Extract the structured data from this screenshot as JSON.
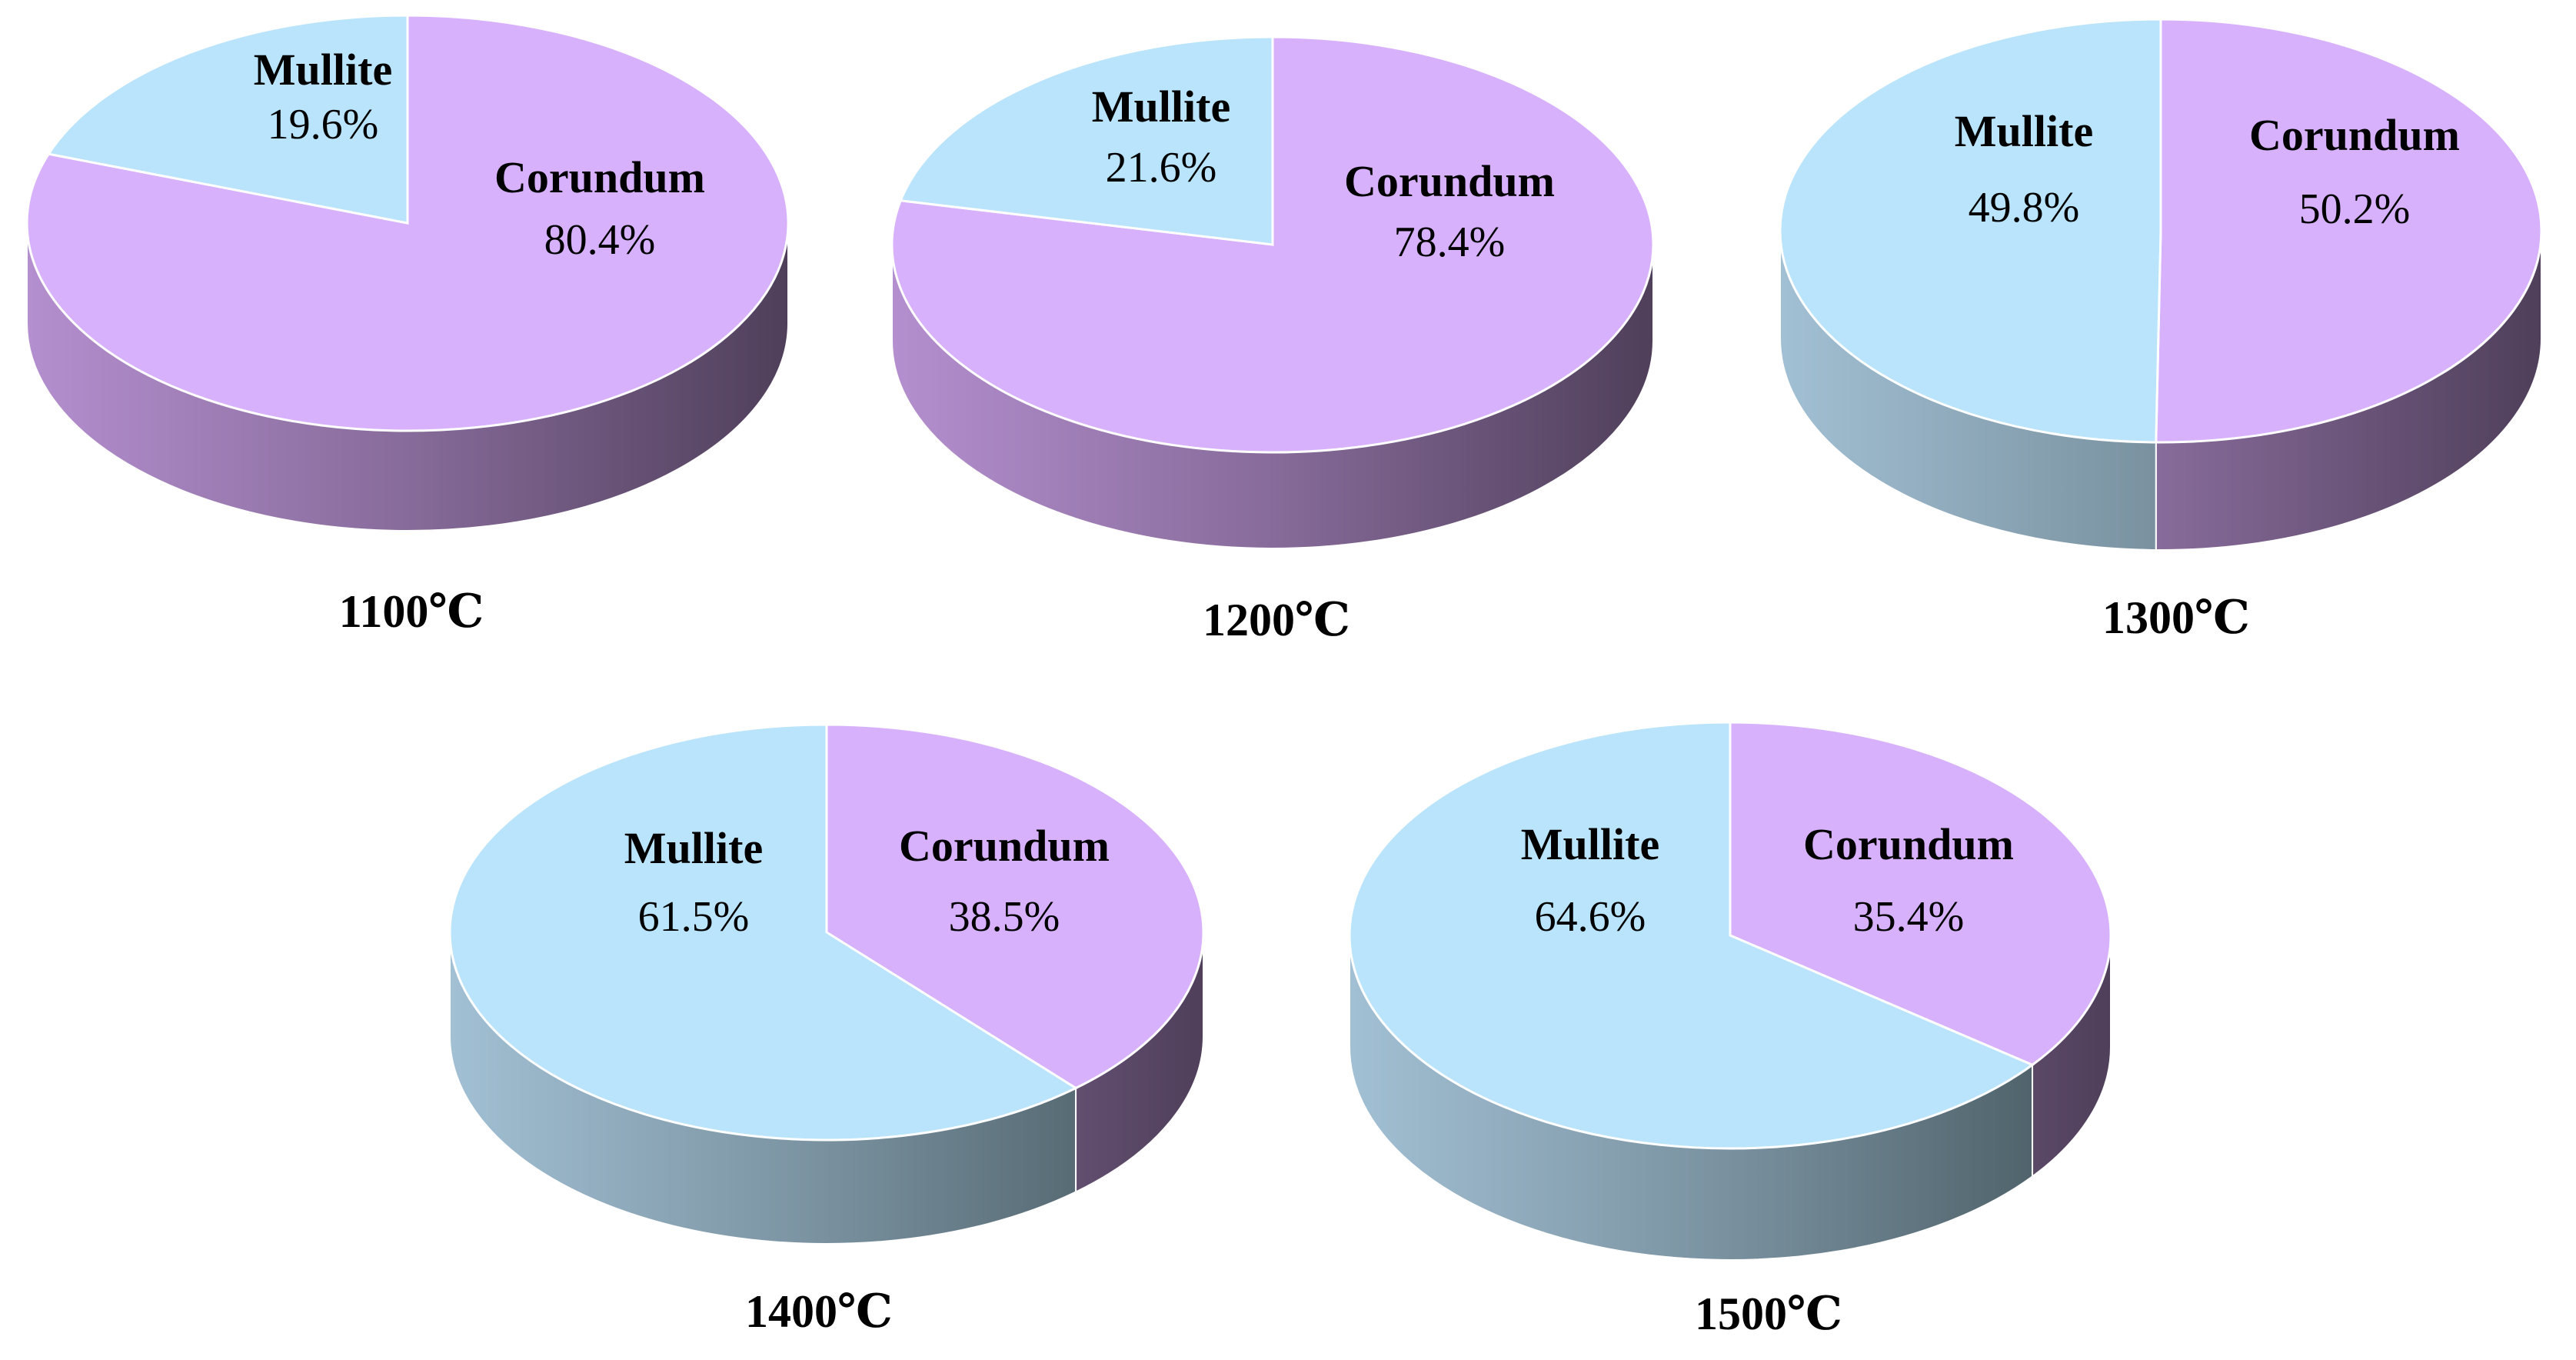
{
  "colors": {
    "mullite_top": "#b9e4fb",
    "mullite_side_light": "#a2c0d4",
    "mullite_side_dark": "#46585f",
    "corundum_top": "#d8b1fd",
    "corundum_side_light": "#b48fcf",
    "corundum_side_dark": "#4f3f5a",
    "edge": "#ffffff",
    "text": "#000000"
  },
  "chart_data": [
    {
      "type": "pie",
      "style": "3d",
      "caption": "1100℃",
      "categories": [
        "Mullite",
        "Corundum"
      ],
      "values": [
        19.6,
        80.4
      ],
      "value_labels": [
        "19.6%",
        "80.4%"
      ]
    },
    {
      "type": "pie",
      "style": "3d",
      "caption": "1200℃",
      "categories": [
        "Mullite",
        "Corundum"
      ],
      "values": [
        21.6,
        78.4
      ],
      "value_labels": [
        "21.6%",
        "78.4%"
      ]
    },
    {
      "type": "pie",
      "style": "3d",
      "caption": "1300℃",
      "categories": [
        "Mullite",
        "Corundum"
      ],
      "values": [
        49.8,
        50.2
      ],
      "value_labels": [
        "49.8%",
        "50.2%"
      ]
    },
    {
      "type": "pie",
      "style": "3d",
      "caption": "1400℃",
      "categories": [
        "Mullite",
        "Corundum"
      ],
      "values": [
        61.5,
        38.5
      ],
      "value_labels": [
        "61.5%",
        "38.5%"
      ]
    },
    {
      "type": "pie",
      "style": "3d",
      "caption": "1500℃",
      "categories": [
        "Mullite",
        "Corundum"
      ],
      "values": [
        64.6,
        35.4
      ],
      "value_labels": [
        "64.6%",
        "35.4%"
      ]
    }
  ]
}
